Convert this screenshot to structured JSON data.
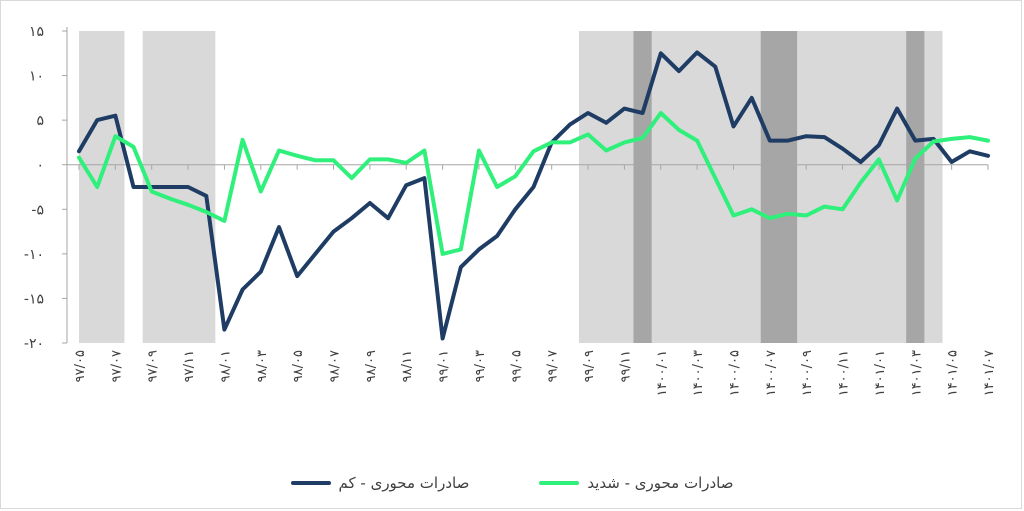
{
  "chart_data": {
    "type": "line",
    "categories": [
      "۹۷/۰۵",
      "۹۷/۰۶",
      "۹۷/۰۷",
      "۹۷/۰۸",
      "۹۷/۰۹",
      "۹۷/۱۰",
      "۹۷/۱۱",
      "۹۷/۱۲",
      "۹۸/۰۱",
      "۹۸/۰۲",
      "۹۸/۰۳",
      "۹۸/۰۴",
      "۹۸/۰۵",
      "۹۸/۰۶",
      "۹۸/۰۷",
      "۹۸/۰۸",
      "۹۸/۰۹",
      "۹۸/۱۰",
      "۹۸/۱۱",
      "۹۸/۱۲",
      "۹۹/۰۱",
      "۹۹/۰۲",
      "۹۹/۰۳",
      "۹۹/۰۴",
      "۹۹/۰۵",
      "۹۹/۰۶",
      "۹۹/۰۷",
      "۹۹/۰۸",
      "۹۹/۰۹",
      "۹۹/۱۰",
      "۹۹/۱۱",
      "۹۹/۱۲",
      "۱۴۰۰/۰۱",
      "۱۴۰۰/۰۲",
      "۱۴۰۰/۰۳",
      "۱۴۰۰/۰۴",
      "۱۴۰۰/۰۵",
      "۱۴۰۰/۰۶",
      "۱۴۰۰/۰۷",
      "۱۴۰۰/۰۸",
      "۱۴۰۰/۰۹",
      "۱۴۰۰/۱۰",
      "۱۴۰۰/۱۱",
      "۱۴۰۰/۱۲",
      "۱۴۰۱/۰۱",
      "۱۴۰۱/۰۲",
      "۱۴۰۱/۰۳",
      "۱۴۰۱/۰۴",
      "۱۴۰۱/۰۵",
      "۱۴۰۱/۰۶",
      "۱۴۰۱/۰۷"
    ],
    "x_tick_labels": [
      "۹۷/۰۵",
      "۹۷/۰۷",
      "۹۷/۰۹",
      "۹۷/۱۱",
      "۹۸/۰۱",
      "۹۸/۰۳",
      "۹۸/۰۵",
      "۹۸/۰۷",
      "۹۸/۰۹",
      "۹۸/۱۱",
      "۹۹/۰۱",
      "۹۹/۰۳",
      "۹۹/۰۵",
      "۹۹/۰۷",
      "۹۹/۰۹",
      "۹۹/۱۱",
      "۱۴۰۰/۰۱",
      "۱۴۰۰/۰۳",
      "۱۴۰۰/۰۵",
      "۱۴۰۰/۰۷",
      "۱۴۰۰/۰۹",
      "۱۴۰۰/۱۱",
      "۱۴۰۱/۰۱",
      "۱۴۰۱/۰۳",
      "۱۴۰۱/۰۵",
      "۱۴۰۱/۰۷"
    ],
    "y_tick_labels": [
      "۱۵",
      "۱۰",
      "۵",
      "۰",
      "-۵",
      "-۱۰",
      "-۱۵",
      "-۲۰"
    ],
    "yticks": [
      15,
      10,
      5,
      0,
      -5,
      -10,
      -15,
      -20
    ],
    "ylim": [
      -20,
      15
    ],
    "series": [
      {
        "name": "صادرات محوری - کم",
        "color": "#1f3d64",
        "values": [
          1.5,
          5,
          5.5,
          -2.5,
          -2.5,
          -2.5,
          -2.5,
          -3.5,
          -18.5,
          -14,
          -12,
          -7,
          -12.5,
          -10,
          -7.5,
          -6,
          -4.3,
          -6,
          -2.3,
          -1.5,
          -19.5,
          -11.5,
          -9.5,
          -8,
          -5,
          -2.5,
          2.5,
          4.5,
          5.8,
          4.7,
          6.3,
          5.8,
          12.5,
          10.5,
          12.6,
          11,
          4.3,
          7.5,
          2.7,
          2.7,
          3.2,
          3.1,
          1.8,
          0.3,
          2.2,
          6.3,
          2.7,
          2.9,
          0.3,
          1.5,
          1
        ]
      },
      {
        "name": "صادرات محوری - شدید",
        "color": "#2ef07a",
        "values": [
          0.8,
          -2.5,
          3.2,
          2,
          -3,
          -3.8,
          -4.5,
          -5.3,
          -6.3,
          2.8,
          -3,
          1.6,
          1,
          0.5,
          0.5,
          -1.5,
          0.6,
          0.6,
          0.2,
          1.6,
          -10,
          -9.5,
          1.6,
          -2.5,
          -1.3,
          1.5,
          2.5,
          2.5,
          3.4,
          1.6,
          2.5,
          3,
          5.8,
          3.9,
          2.7,
          -1.5,
          -5.7,
          -5,
          -6,
          -5.5,
          -5.7,
          -4.7,
          -5,
          -2,
          0.6,
          -4,
          0.7,
          2.6,
          2.9,
          3.1,
          2.7
        ]
      }
    ],
    "shaded_regions": [
      {
        "from": 0,
        "to": 2.5,
        "shade": "light"
      },
      {
        "from": 3.5,
        "to": 7.5,
        "shade": "light"
      },
      {
        "from": 27.5,
        "to": 44.5,
        "shade": "light"
      },
      {
        "from": 44.5,
        "to": 47.5,
        "shade": "light"
      },
      {
        "from": 30.5,
        "to": 31.5,
        "shade": "dark"
      },
      {
        "from": 37.5,
        "to": 39.5,
        "shade": "dark"
      },
      {
        "from": 45.5,
        "to": 46.5,
        "shade": "dark"
      }
    ],
    "colors": {
      "light": "#d9d9d9",
      "dark": "#a6a6a6",
      "axis": "#a6a6a6"
    },
    "legend_position": "bottom",
    "grid": false
  },
  "legend": {
    "items": [
      {
        "label": "صادرات محوری - کم",
        "color": "#1f3d64"
      },
      {
        "label": "صادرات محوری - شدید",
        "color": "#2ef07a"
      }
    ]
  }
}
